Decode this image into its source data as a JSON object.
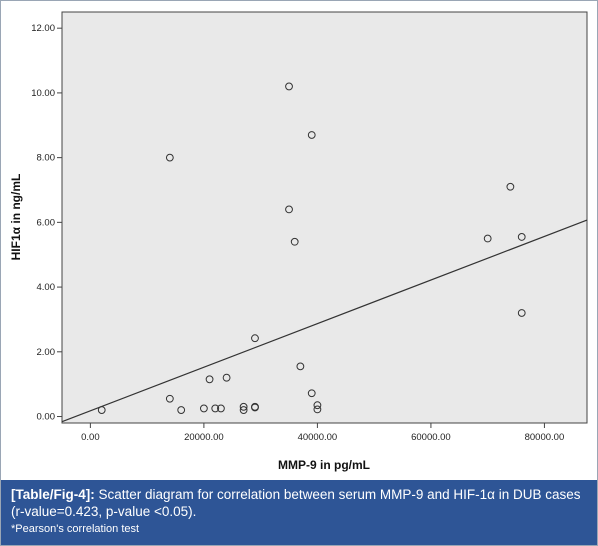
{
  "chart_data": {
    "type": "scatter",
    "xlabel": "MMP-9 in pg/mL",
    "ylabel": "HIF1α in ng/mL",
    "xlim": [
      -5000,
      87500
    ],
    "ylim": [
      -0.2,
      12.5
    ],
    "x_ticks": [
      "0.00",
      "20000.00",
      "40000.00",
      "60000.00",
      "80000.00"
    ],
    "x_tick_values": [
      0,
      20000,
      40000,
      60000,
      80000
    ],
    "y_ticks": [
      "0.00",
      "2.00",
      "4.00",
      "6.00",
      "8.00",
      "10.00",
      "12.00"
    ],
    "y_tick_values": [
      0,
      2,
      4,
      6,
      8,
      10,
      12
    ],
    "grid": false,
    "points": [
      {
        "x": 2000,
        "y": 0.2
      },
      {
        "x": 14000,
        "y": 8.0
      },
      {
        "x": 14000,
        "y": 0.55
      },
      {
        "x": 16000,
        "y": 0.2
      },
      {
        "x": 20000,
        "y": 0.25
      },
      {
        "x": 21000,
        "y": 1.15
      },
      {
        "x": 22000,
        "y": 0.25
      },
      {
        "x": 23000,
        "y": 0.25
      },
      {
        "x": 24000,
        "y": 1.2
      },
      {
        "x": 27000,
        "y": 0.3
      },
      {
        "x": 27000,
        "y": 0.2
      },
      {
        "x": 29000,
        "y": 0.3
      },
      {
        "x": 29000,
        "y": 0.28
      },
      {
        "x": 29000,
        "y": 2.42
      },
      {
        "x": 35000,
        "y": 10.2
      },
      {
        "x": 35000,
        "y": 6.4
      },
      {
        "x": 36000,
        "y": 5.4
      },
      {
        "x": 37000,
        "y": 1.55
      },
      {
        "x": 39000,
        "y": 8.7
      },
      {
        "x": 39000,
        "y": 0.72
      },
      {
        "x": 40000,
        "y": 0.35
      },
      {
        "x": 40000,
        "y": 0.22
      },
      {
        "x": 70000,
        "y": 5.5
      },
      {
        "x": 74000,
        "y": 7.1
      },
      {
        "x": 76000,
        "y": 5.55
      },
      {
        "x": 76000,
        "y": 3.2
      }
    ],
    "fit_line": {
      "x1": -5000,
      "y1": -0.16,
      "x2": 87500,
      "y2": 6.07
    }
  },
  "caption": {
    "tag": "[Table/Fig-4]:",
    "text": " Scatter diagram for correlation between serum MMP-9 and HIF-1α in DUB cases (r-value=0.423, p-value <0.05).",
    "note": "*Pearson's correlation test"
  },
  "colors": {
    "plot_bg": "#e9e9e9",
    "caption_bg": "#2e5596",
    "marker": "#333333",
    "fit_line": "#333333"
  }
}
